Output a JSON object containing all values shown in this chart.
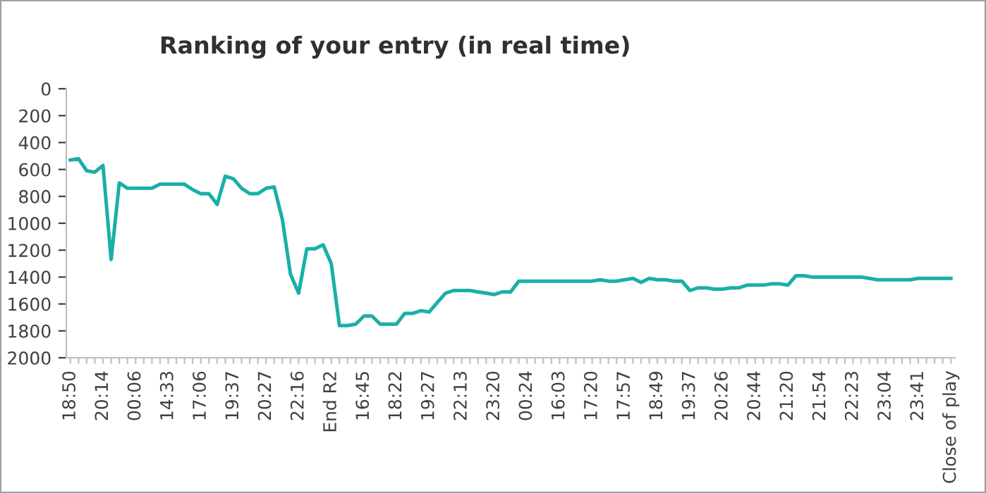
{
  "chart_data": {
    "type": "line",
    "title": "Ranking of your entry (in real time)",
    "categories": [
      "18:50",
      null,
      null,
      null,
      "20:14",
      null,
      null,
      null,
      "00:06",
      null,
      null,
      null,
      "14:33",
      null,
      null,
      null,
      "17:06",
      null,
      null,
      null,
      "19:37",
      null,
      null,
      null,
      "20:27",
      null,
      null,
      null,
      "22:16",
      null,
      null,
      null,
      "End R2",
      null,
      null,
      null,
      "16:45",
      null,
      null,
      null,
      "18:22",
      null,
      null,
      null,
      "19:27",
      null,
      null,
      null,
      "22:13",
      null,
      null,
      null,
      "23:20",
      null,
      null,
      null,
      "00:24",
      null,
      null,
      null,
      "16:03",
      null,
      null,
      null,
      "17:20",
      null,
      null,
      null,
      "17:57",
      null,
      null,
      null,
      "18:49",
      null,
      null,
      null,
      "19:37",
      null,
      null,
      null,
      "20:26",
      null,
      null,
      null,
      "20:44",
      null,
      null,
      null,
      "21:20",
      null,
      null,
      null,
      "21:54",
      null,
      null,
      null,
      "22:23",
      null,
      null,
      null,
      "23:04",
      null,
      null,
      null,
      "23:41",
      null,
      null,
      null,
      "Close of play"
    ],
    "series": [
      {
        "color": "#1aafa8",
        "values": [
          530,
          520,
          610,
          620,
          570,
          1270,
          700,
          740,
          740,
          740,
          740,
          710,
          710,
          710,
          710,
          750,
          780,
          780,
          860,
          650,
          670,
          740,
          780,
          780,
          740,
          730,
          970,
          1380,
          1520,
          1190,
          1190,
          1160,
          1300,
          1760,
          1760,
          1750,
          1690,
          1690,
          1750,
          1750,
          1750,
          1670,
          1670,
          1650,
          1660,
          1590,
          1520,
          1500,
          1500,
          1500,
          1510,
          1520,
          1530,
          1510,
          1510,
          1430,
          1430,
          1430,
          1430,
          1430,
          1430,
          1430,
          1430,
          1430,
          1430,
          1420,
          1430,
          1430,
          1420,
          1410,
          1440,
          1410,
          1420,
          1420,
          1430,
          1430,
          1500,
          1480,
          1480,
          1490,
          1490,
          1480,
          1480,
          1460,
          1460,
          1460,
          1450,
          1450,
          1460,
          1390,
          1390,
          1400,
          1400,
          1400,
          1400,
          1400,
          1400,
          1400,
          1410,
          1420,
          1420,
          1420,
          1420,
          1420,
          1410,
          1410,
          1410,
          1410,
          1410
        ]
      }
    ],
    "ylim": [
      2000,
      0
    ],
    "yticks": [
      0,
      200,
      400,
      600,
      800,
      1000,
      1200,
      1400,
      1600,
      1800,
      2000
    ],
    "grid": false,
    "marker": "none",
    "line_style": "solid"
  }
}
